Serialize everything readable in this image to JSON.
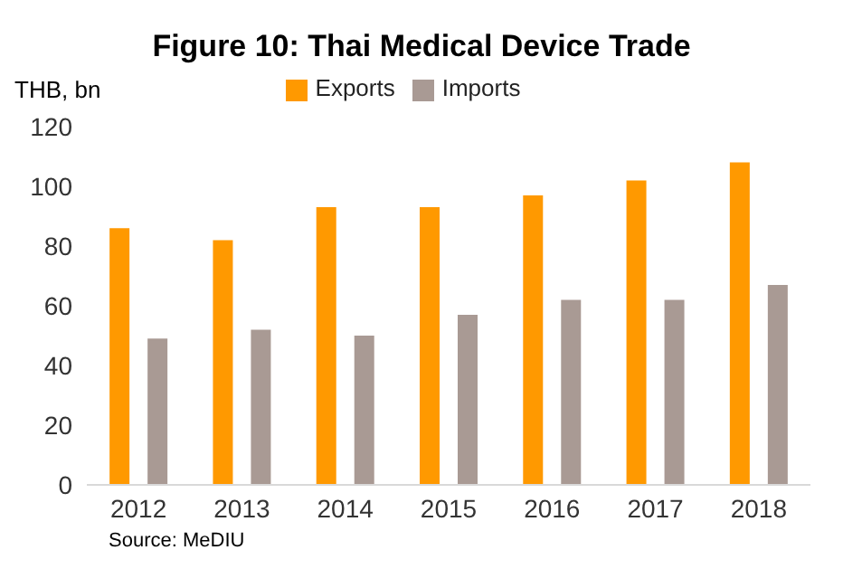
{
  "chart_data": {
    "type": "bar",
    "title": "Figure 10: Thai Medical Device Trade",
    "ylabel": "THB, bn",
    "categories": [
      "2012",
      "2013",
      "2014",
      "2015",
      "2016",
      "2017",
      "2018"
    ],
    "series": [
      {
        "name": "Exports",
        "color": "#ff9900",
        "values": [
          86,
          82,
          93,
          93,
          97,
          102,
          108
        ]
      },
      {
        "name": "Imports",
        "color": "#a99a94",
        "values": [
          49,
          52,
          50,
          57,
          62,
          62,
          67
        ]
      }
    ],
    "ylim": [
      0,
      120
    ],
    "yticks": [
      0,
      20,
      40,
      60,
      80,
      100,
      120
    ],
    "grid": false,
    "legend": "top",
    "annotations": [
      "Source: MeDIU"
    ]
  }
}
